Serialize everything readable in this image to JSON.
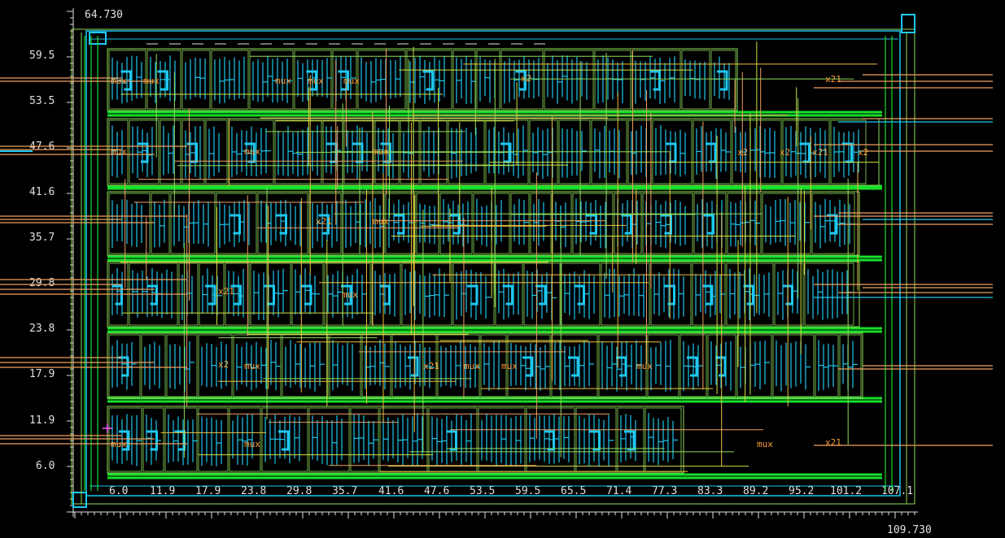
{
  "viewer": {
    "corner_top": "64.730",
    "corner_right": "109.730",
    "x_ticks": [
      "6.0",
      "11.9",
      "17.9",
      "23.8",
      "29.8",
      "35.7",
      "41.6",
      "47.6",
      "53.5",
      "59.5",
      "65.5",
      "71.4",
      "77.3",
      "83.3",
      "89.2",
      "95.2",
      "101.2",
      "107.1"
    ],
    "y_ticks": [
      "59.5",
      "53.5",
      "47.6",
      "41.6",
      "35.7",
      "29.8",
      "23.8",
      "17.9",
      "11.9",
      "6.0"
    ]
  },
  "cells": {
    "mux_label": "mux",
    "x2_label": "x2",
    "x21_label": "x21"
  },
  "colors": {
    "background": "#000000",
    "metal1": "#1ec8f0",
    "metal2_power": "#16e02a",
    "cell_outline": "#8fdc5a",
    "metal3_wire": "#f0a060",
    "poly_label": "#ff9d3a",
    "ruler_text": "#e0e0e0",
    "cursor": "#ff66ff"
  }
}
